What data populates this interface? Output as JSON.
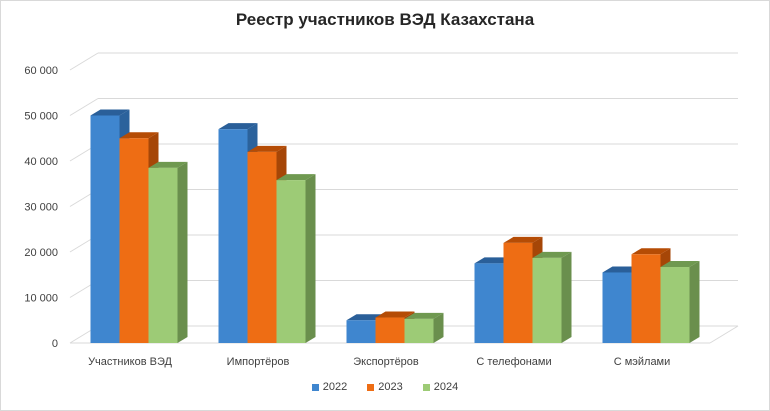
{
  "chart_data": {
    "type": "bar",
    "title": "Реестр участников ВЭД Казахстана",
    "categories": [
      "Участников ВЭД",
      "Импортёров",
      "Экспортёров",
      "С телефонами",
      "С мэйлами"
    ],
    "series": [
      {
        "name": "2022",
        "color": "#3f86cf",
        "top": "#2a5f99",
        "side": "#2b629c",
        "values": [
          50000,
          47000,
          5000,
          17500,
          15500
        ]
      },
      {
        "name": "2023",
        "color": "#ee6d14",
        "top": "#b54c05",
        "side": "#a64607",
        "values": [
          45000,
          42000,
          5600,
          22000,
          19500
        ]
      },
      {
        "name": "2024",
        "color": "#9dcb76",
        "top": "#6f9950",
        "side": "#6a8f4d",
        "values": [
          38500,
          35800,
          5300,
          18700,
          16700
        ]
      }
    ],
    "y_ticks": [
      "0",
      "10 000",
      "20 000",
      "30 000",
      "40 000",
      "50 000",
      "60 000"
    ],
    "ylim": [
      0,
      60000
    ],
    "grid": true,
    "legend_position": "bottom",
    "xlabel": "",
    "ylabel": ""
  }
}
